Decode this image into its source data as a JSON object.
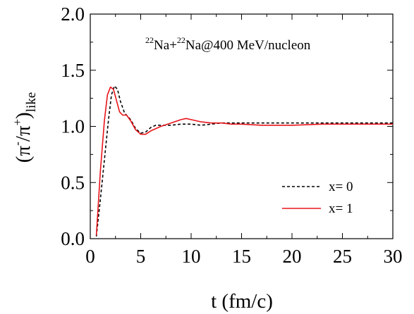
{
  "chart_data": {
    "type": "line",
    "annotation": {
      "parts": [
        "22",
        "Na+",
        "22",
        "Na@400 MeV/nucleon"
      ]
    },
    "xlabel": "t (fm/c)",
    "ylabel": {
      "open": "(π",
      "sup1": "-",
      "mid": "/π",
      "sup2": "+",
      "close": ")",
      "sub": "like"
    },
    "xlim": [
      0,
      30
    ],
    "ylim": [
      0.0,
      2.0
    ],
    "xticks": [
      "0",
      "5",
      "10",
      "15",
      "20",
      "25",
      "30"
    ],
    "yticks": [
      "0.0",
      "0.5",
      "1.0",
      "1.5",
      "2.0"
    ],
    "grid": false,
    "legend_position": "bottom-right",
    "series": [
      {
        "name": "x= 0",
        "color": "#000000",
        "style": "dashed",
        "x": [
          0.6,
          1.0,
          1.4,
          1.8,
          2.1,
          2.4,
          2.7,
          3.0,
          3.4,
          4.0,
          4.5,
          5.0,
          5.5,
          6.0,
          6.5,
          7.0,
          8.0,
          9.0,
          10.0,
          11.0,
          12.0,
          13.0,
          15.0,
          18.0,
          20.0,
          22.0,
          25.0,
          27.0,
          30.0
        ],
        "y": [
          0.02,
          0.35,
          0.7,
          1.05,
          1.28,
          1.36,
          1.33,
          1.22,
          1.12,
          1.06,
          0.98,
          0.94,
          0.95,
          0.99,
          1.01,
          1.01,
          1.01,
          1.02,
          1.02,
          1.01,
          1.02,
          1.03,
          1.03,
          1.03,
          1.03,
          1.03,
          1.03,
          1.03,
          1.03
        ]
      },
      {
        "name": "x= 1",
        "color": "#e8141a",
        "style": "solid",
        "x": [
          0.6,
          1.0,
          1.4,
          1.7,
          2.0,
          2.3,
          2.6,
          2.9,
          3.2,
          3.6,
          4.0,
          4.5,
          5.0,
          5.5,
          6.0,
          7.0,
          8.0,
          9.0,
          9.5,
          10.0,
          11.0,
          12.0,
          13.0,
          14.0,
          15.0,
          17.0,
          20.0,
          23.0,
          25.0,
          28.0,
          30.0
        ],
        "y": [
          0.03,
          0.6,
          1.05,
          1.28,
          1.35,
          1.33,
          1.23,
          1.13,
          1.1,
          1.1,
          1.05,
          0.97,
          0.93,
          0.93,
          0.96,
          1.0,
          1.03,
          1.06,
          1.07,
          1.06,
          1.04,
          1.03,
          1.03,
          1.02,
          1.02,
          1.01,
          1.01,
          1.02,
          1.02,
          1.02,
          1.02
        ]
      }
    ]
  }
}
